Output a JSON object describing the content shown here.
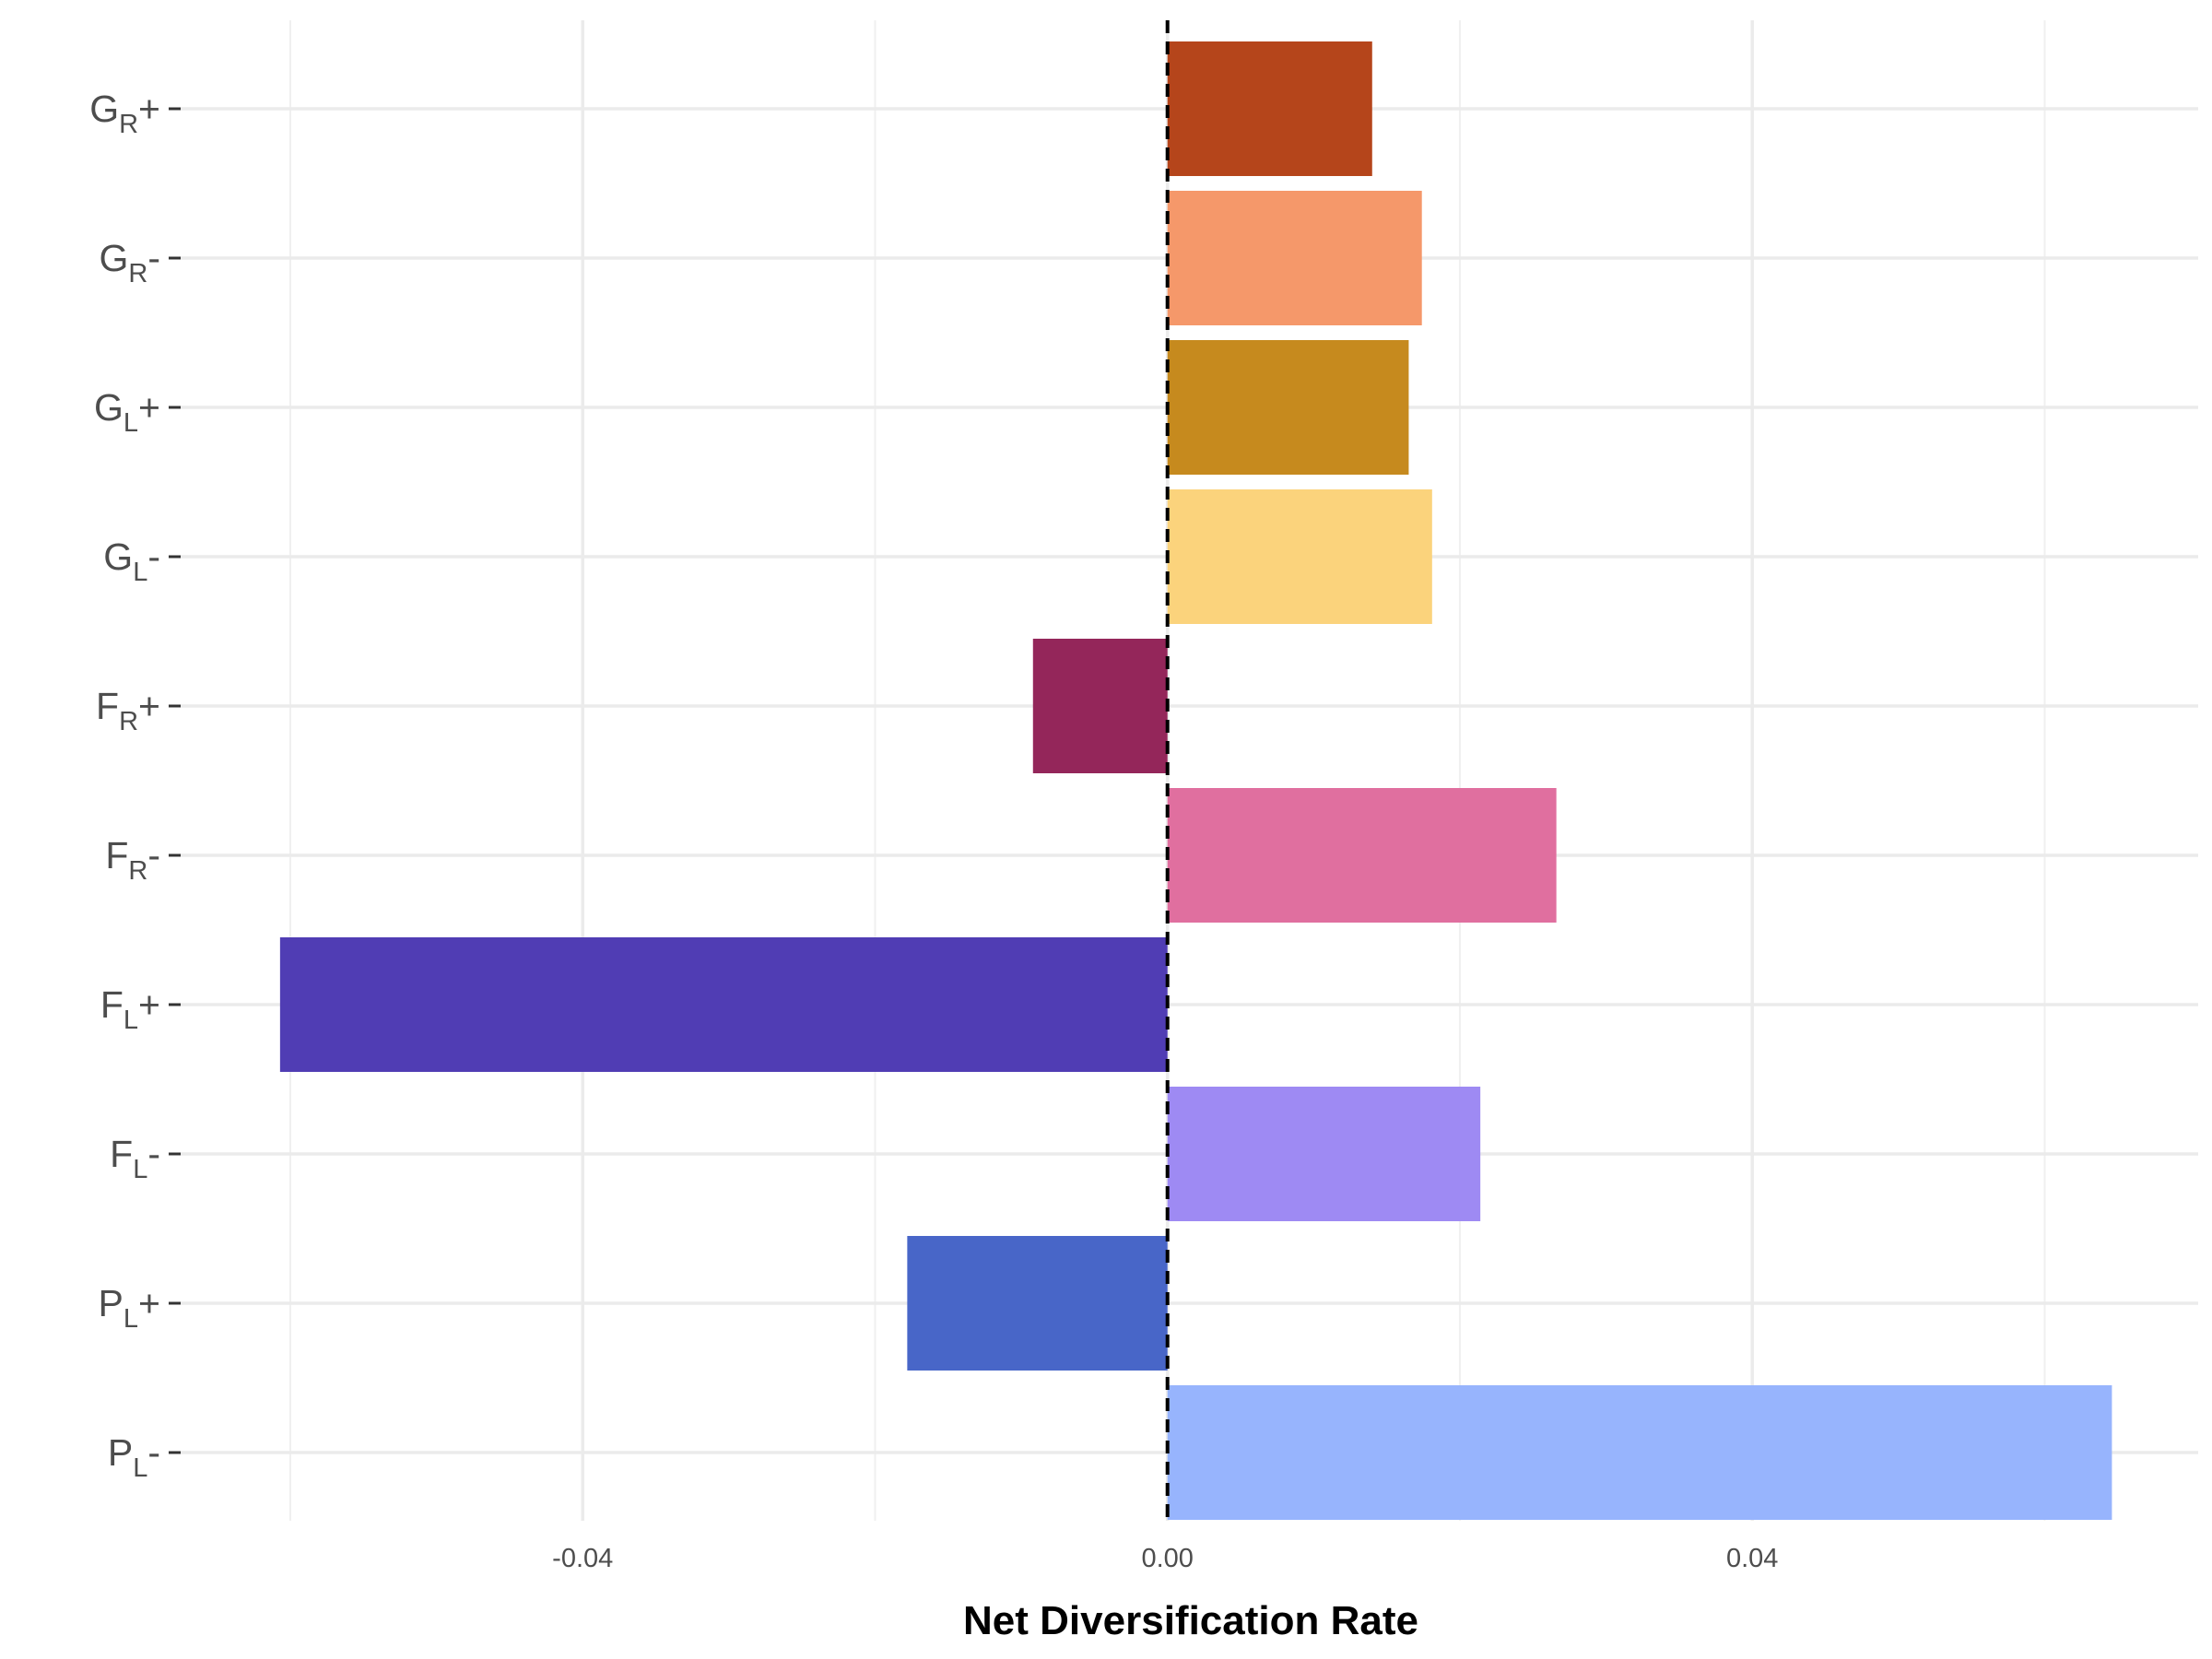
{
  "chart_data": {
    "type": "bar",
    "orientation": "horizontal",
    "categories": [
      {
        "id": "GR+",
        "base": "G",
        "sub": "R",
        "suffix": "+"
      },
      {
        "id": "GR-",
        "base": "G",
        "sub": "R",
        "suffix": "-"
      },
      {
        "id": "GL+",
        "base": "G",
        "sub": "L",
        "suffix": "+"
      },
      {
        "id": "GL-",
        "base": "G",
        "sub": "L",
        "suffix": "-"
      },
      {
        "id": "FR+",
        "base": "F",
        "sub": "R",
        "suffix": "+"
      },
      {
        "id": "FR-",
        "base": "F",
        "sub": "R",
        "suffix": "-"
      },
      {
        "id": "FL+",
        "base": "F",
        "sub": "L",
        "suffix": "+"
      },
      {
        "id": "FL-",
        "base": "F",
        "sub": "L",
        "suffix": "-"
      },
      {
        "id": "PL+",
        "base": "P",
        "sub": "L",
        "suffix": "+"
      },
      {
        "id": "PL-",
        "base": "P",
        "sub": "L",
        "suffix": "-"
      }
    ],
    "values": [
      0.014,
      0.0174,
      0.0165,
      0.0181,
      -0.0092,
      0.0266,
      -0.0607,
      0.0214,
      -0.0178,
      0.0646
    ],
    "colors": [
      "#b5451b",
      "#f5986a",
      "#c68a1e",
      "#fbd37c",
      "#94265a",
      "#e06f9f",
      "#503db4",
      "#9e8af3",
      "#4866c8",
      "#97b4fd"
    ],
    "xlabel": "Net Diversification Rate",
    "ylabel": "",
    "xlim": [
      -0.0675,
      0.0705
    ],
    "xticks": [
      -0.04,
      0.0,
      0.04
    ],
    "xtick_labels": [
      "-0.04",
      "0.00",
      "0.04"
    ],
    "minor_grid": [
      -0.06,
      -0.02,
      0.02,
      0.06
    ],
    "reference_line": {
      "x": 0.0,
      "style": "dashed",
      "color": "#000000"
    },
    "grid": true,
    "legend": "none"
  }
}
